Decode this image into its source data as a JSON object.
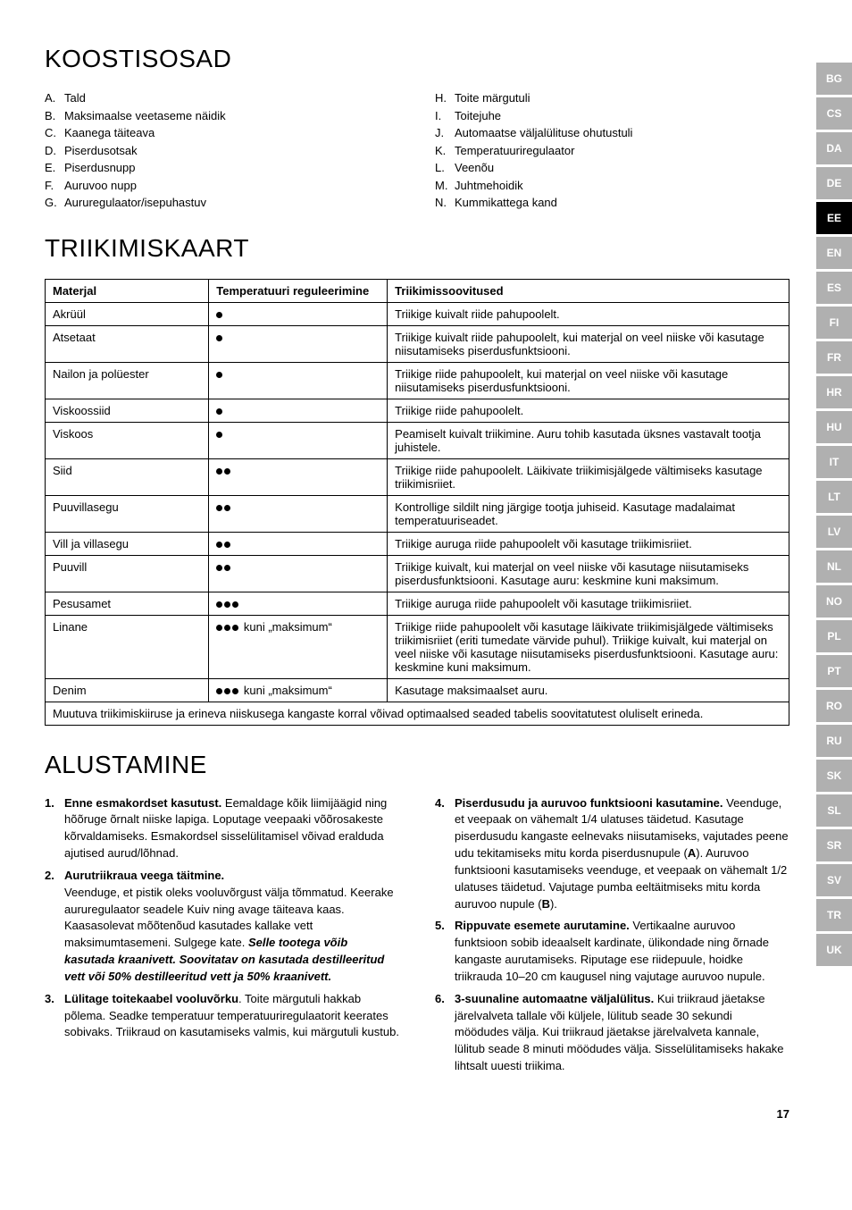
{
  "tabs": [
    "BG",
    "CS",
    "DA",
    "DE",
    "EE",
    "EN",
    "ES",
    "FI",
    "FR",
    "HR",
    "HU",
    "IT",
    "LT",
    "LV",
    "NL",
    "NO",
    "PL",
    "PT",
    "RO",
    "RU",
    "SK",
    "SL",
    "SR",
    "SV",
    "TR",
    "UK"
  ],
  "active_tab": "EE",
  "section1": {
    "title": "KOOSTISOSAD",
    "left": [
      {
        "m": "A.",
        "t": "Tald"
      },
      {
        "m": "B.",
        "t": "Maksimaalse veetaseme näidik"
      },
      {
        "m": "C.",
        "t": "Kaanega täiteava"
      },
      {
        "m": "D.",
        "t": "Piserdusotsak"
      },
      {
        "m": "E.",
        "t": "Piserdusnupp"
      },
      {
        "m": "F.",
        "t": "Auruvoo nupp"
      },
      {
        "m": "G.",
        "t": "Aururegulaator/isepuhastuv"
      }
    ],
    "right": [
      {
        "m": "H.",
        "t": "Toite märgutuli"
      },
      {
        "m": "I.",
        "t": "Toitejuhe"
      },
      {
        "m": "J.",
        "t": "Automaatse väljalülituse ohutustuli"
      },
      {
        "m": "K.",
        "t": "Temperatuuriregulaator"
      },
      {
        "m": "L.",
        "t": "Veenõu"
      },
      {
        "m": "M.",
        "t": "Juhtmehoidik"
      },
      {
        "m": "N.",
        "t": "Kummikattega kand"
      }
    ]
  },
  "section2": {
    "title": "TRIIKIMISKAART",
    "headers": [
      "Materjal",
      "Temperatuuri reguleerimine",
      "Triikimissoovitused"
    ],
    "rows": [
      {
        "mat": "Akrüül",
        "dots": 1,
        "temp": "",
        "tip": "Triikige kuivalt riide pahupoolelt."
      },
      {
        "mat": "Atsetaat",
        "dots": 1,
        "temp": "",
        "tip": "Triikige kuivalt riide pahupoolelt, kui materjal on veel niiske või kasutage niisutamiseks piserdusfunktsiooni."
      },
      {
        "mat": "Nailon ja polüester",
        "dots": 1,
        "temp": "",
        "tip": "Triikige riide pahupoolelt, kui materjal on veel niiske või kasutage niisutamiseks piserdusfunktsiooni."
      },
      {
        "mat": "Viskoossiid",
        "dots": 1,
        "temp": "",
        "tip": "Triikige riide pahupoolelt."
      },
      {
        "mat": "Viskoos",
        "dots": 1,
        "temp": "",
        "tip": "Peamiselt kuivalt triikimine. Auru tohib kasutada üksnes vastavalt tootja juhistele."
      },
      {
        "mat": "Siid",
        "dots": 2,
        "temp": "",
        "tip": "Triikige riide pahupoolelt. Läikivate triikimisjälgede vältimiseks kasutage triikimisriiet."
      },
      {
        "mat": "Puuvillasegu",
        "dots": 2,
        "temp": "",
        "tip": "Kontrollige sildilt ning järgige tootja juhiseid. Kasutage madalaimat temperatuuriseadet."
      },
      {
        "mat": "Vill ja villasegu",
        "dots": 2,
        "temp": "",
        "tip": "Triikige auruga riide pahupoolelt või kasutage triikimisriiet."
      },
      {
        "mat": "Puuvill",
        "dots": 2,
        "temp": "",
        "tip": "Triikige kuivalt, kui materjal on veel niiske või kasutage niisutamiseks piserdusfunktsiooni. Kasutage auru: keskmine kuni maksimum."
      },
      {
        "mat": "Pesusamet",
        "dots": 3,
        "temp": "",
        "tip": "Triikige auruga riide pahupoolelt või kasutage triikimisriiet."
      },
      {
        "mat": "Linane",
        "dots": 3,
        "temp": " kuni „maksimum“",
        "tip": "Triikige riide pahupoolelt või kasutage läikivate triikimisjälgede vältimiseks triikimisriiet (eriti tumedate värvide puhul). Triikige kuivalt, kui materjal on veel niiske või kasutage niisutamiseks piserdusfunktsiooni. Kasutage auru: keskmine kuni maksimum."
      },
      {
        "mat": "Denim",
        "dots": 3,
        "temp": " kuni „maksimum“",
        "tip": "Kasutage maksimaalset auru."
      }
    ],
    "footnote": "Muutuva triikimiskiiruse ja erineva niiskusega kangaste korral võivad optimaalsed seaded tabelis soovitatutest oluliselt erineda."
  },
  "section3": {
    "title": "ALUSTAMINE",
    "left": [
      {
        "n": "1.",
        "lead": "Enne esmakordset kasutust.",
        "body": " Eemaldage kõik liimijäägid ning hõõruge õrnalt niiske lapiga. Loputage veepaaki võõrosakeste kõrvaldamiseks. Esmakordsel sisselülitamisel võivad eralduda ajutised aurud/lõhnad."
      },
      {
        "n": "2.",
        "lead": "Aurutriikraua veega täitmine.",
        "body": "",
        "extra": "Veenduge, et pistik oleks vooluvõrgust välja tõmmatud. Keerake aururegulaator seadele Kuiv ning avage täiteava kaas. Kaasasolevat mõõtenõud kasutades kallake vett maksimumtasemeni. Sulgege kate. ",
        "italic": "Selle tootega võib kasutada kraanivett. Soovitatav on kasutada destilleeritud vett või 50% destilleeritud vett ja 50% kraanivett."
      },
      {
        "n": "3.",
        "lead": "Lülitage toitekaabel vooluvõrku",
        "body": ". Toite märgutuli hakkab põlema. Seadke temperatuur temperatuuriregulaatorit keerates sobivaks. Triikraud on kasutamiseks valmis, kui märgutuli kustub."
      }
    ],
    "right": [
      {
        "n": "4.",
        "lead": "Piserdusudu ja auruvoo funktsiooni kasutamine.",
        "body": " Veenduge, et veepaak on vähemalt 1/4 ulatuses täidetud. Kasutage piserdusudu kangaste eelnevaks niisutamiseks, vajutades peene udu tekitamiseks mitu korda piserdusnupule (",
        "bA": "A",
        "mid": "). Auruvoo funktsiooni kasutamiseks veenduge, et veepaak on vähemalt 1/2 ulatuses täidetud. Vajutage pumba eeltäitmiseks mitu korda auruvoo nupule (",
        "bB": "B",
        "end": ")."
      },
      {
        "n": "5.",
        "lead": "Rippuvate esemete aurutamine.",
        "body": " Vertikaalne auruvoo funktsioon sobib ideaalselt kardinate, ülikondade ning õrnade kangaste aurutamiseks. Riputage ese riidepuule, hoidke triikrauda 10–20 cm kaugusel ning vajutage auruvoo nupule."
      },
      {
        "n": "6.",
        "lead": "3-suunaline automaatne väljalülitus.",
        "body": " Kui triikraud jäetakse järelvalveta tallale või küljele, lülitub seade 30 sekundi möödudes välja. Kui triikraud jäetakse järelvalveta kannale, lülitub seade 8 minuti möödudes välja. Sisselülitamiseks hakake lihtsalt uuesti triikima."
      }
    ]
  },
  "pagenum": "17"
}
